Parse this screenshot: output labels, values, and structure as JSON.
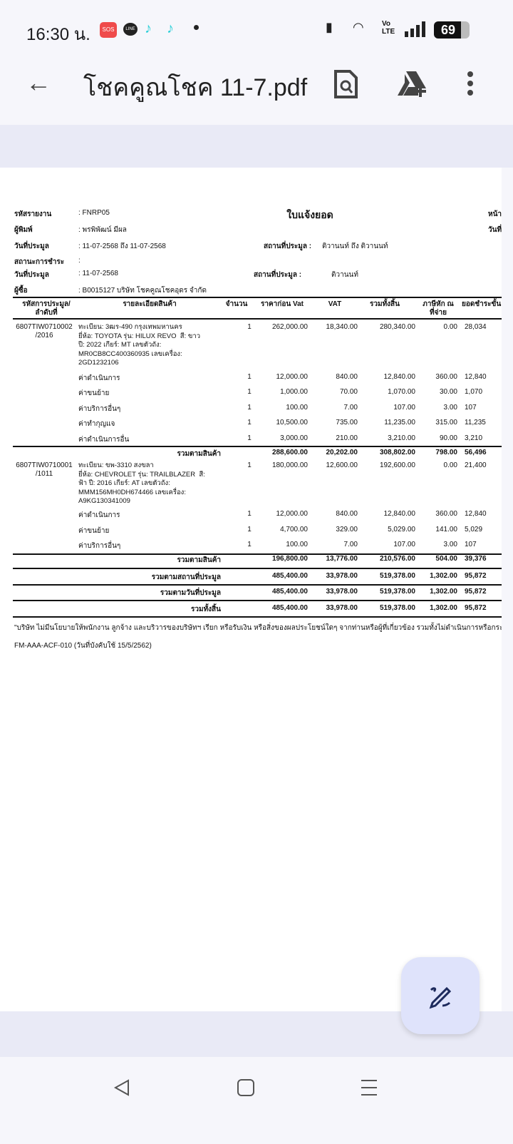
{
  "status_bar": {
    "time": "16:30 น.",
    "sos": "SOS",
    "line": "LINE",
    "battery": "69"
  },
  "toolbar": {
    "back_icon": "arrow-left-icon",
    "title": "โชคคูณโชค 11-7.pdf",
    "search_doc_icon": "document-search-icon",
    "drive_add_icon": "google-drive-add-icon",
    "more_icon": "more-vert-icon"
  },
  "document": {
    "title": "ใบแจ้งยอด",
    "right_labels": [
      "หน้า",
      "วันที่"
    ],
    "meta": [
      {
        "label": "รหัสรายงาน",
        "value": ": FNRP05"
      },
      {
        "label": "ผู้พิมพ์",
        "value": ": พรพิพัฒน์ มีผล"
      },
      {
        "label": "วันที่ประมูล",
        "value": ": 11-07-2568 ถึง 11-07-2568"
      },
      {
        "label": "สถานะการชำระ",
        "value": ":"
      },
      {
        "label": "วันที่ประมูล",
        "value": ": 11-07-2568"
      },
      {
        "label": "ผู้ซื้อ",
        "value": ": B0015127 บริษัท โชคคูณโชคอุดร  จำกัด"
      }
    ],
    "location1": {
      "label": "สถานที่ประมูล :",
      "value": "ติวานนท์ ถึง ติวานนท์"
    },
    "location2": {
      "label": "สถานที่ประมูล :",
      "value": "ติวานนท์"
    },
    "columns": [
      "รหัสการประมูล/\nลำดับที่",
      "รายละเอียดสินค้า",
      "จำนวน",
      "ราคาก่อน Vat",
      "VAT",
      "รวมทั้งสิ้น",
      "ภาษีหัก ณ\nที่จ่าย",
      "ยอดชำระขั้น"
    ],
    "groups": [
      {
        "code": "6807TIW0710002\n/2016",
        "detail": "ทะเบียน: 3ฒร-490 กรุงเทพมหานคร\nยี่ห้อ: TOYOTA รุ่น: HILUX REVO  สี: ขาว\nปี: 2022 เกียร์: MT เลขตัวถัง:\nMR0CB8CC400360935 เลขเครื่อง:\n2GD1232106",
        "main": [
          "1",
          "262,000.00",
          "18,340.00",
          "280,340.00",
          "0.00",
          "28,034"
        ],
        "items": [
          {
            "name": "ค่าดำเนินการ",
            "values": [
              "1",
              "12,000.00",
              "840.00",
              "12,840.00",
              "360.00",
              "12,840"
            ]
          },
          {
            "name": "ค่าขนย้าย",
            "values": [
              "1",
              "1,000.00",
              "70.00",
              "1,070.00",
              "30.00",
              "1,070"
            ]
          },
          {
            "name": "ค่าบริการอื่นๆ",
            "values": [
              "1",
              "100.00",
              "7.00",
              "107.00",
              "3.00",
              "107"
            ]
          },
          {
            "name": "ค่าทำกุญแจ",
            "values": [
              "1",
              "10,500.00",
              "735.00",
              "11,235.00",
              "315.00",
              "11,235"
            ]
          },
          {
            "name": "ค่าดำเนินการอื่น",
            "values": [
              "1",
              "3,000.00",
              "210.00",
              "3,210.00",
              "90.00",
              "3,210"
            ]
          }
        ],
        "subtotal": {
          "label": "รวมตามสินค้า",
          "values": [
            "288,600.00",
            "20,202.00",
            "308,802.00",
            "798.00",
            "56,496"
          ]
        }
      },
      {
        "code": "6807TIW0710001\n/1011",
        "detail": "ทะเบียน: ขพ-3310 สงขลา\nยี่ห้อ: CHEVROLET รุ่น: TRAILBLAZER  สี:\nฟ้า ปี: 2016 เกียร์: AT เลขตัวถัง:\nMMM156MH0DH674466 เลขเครื่อง:\nA9KG130341009",
        "main": [
          "1",
          "180,000.00",
          "12,600.00",
          "192,600.00",
          "0.00",
          "21,400"
        ],
        "items": [
          {
            "name": "ค่าดำเนินการ",
            "values": [
              "1",
              "12,000.00",
              "840.00",
              "12,840.00",
              "360.00",
              "12,840"
            ]
          },
          {
            "name": "ค่าขนย้าย",
            "values": [
              "1",
              "4,700.00",
              "329.00",
              "5,029.00",
              "141.00",
              "5,029"
            ]
          },
          {
            "name": "ค่าบริการอื่นๆ",
            "values": [
              "1",
              "100.00",
              "7.00",
              "107.00",
              "3.00",
              "107"
            ]
          }
        ],
        "subtotal": {
          "label": "รวมตามสินค้า",
          "values": [
            "196,800.00",
            "13,776.00",
            "210,576.00",
            "504.00",
            "39,376"
          ]
        }
      }
    ],
    "totals": [
      {
        "label": "รวมตามสถานที่ประมูล",
        "values": [
          "485,400.00",
          "33,978.00",
          "519,378.00",
          "1,302.00",
          "95,872"
        ]
      },
      {
        "label": "รวมตามวันที่ประมูล",
        "values": [
          "485,400.00",
          "33,978.00",
          "519,378.00",
          "1,302.00",
          "95,872"
        ]
      },
      {
        "label": "รวมทั้งสิ้น",
        "values": [
          "485,400.00",
          "33,978.00",
          "519,378.00",
          "1,302.00",
          "95,872"
        ]
      }
    ],
    "disclaimer": "\"บริษัท ไม่มีนโยบายให้พนักงาน ลูกจ้าง และบริวารของบริษัทฯ เรียก หรือรับเงิน หรือสิ่งของผลประโยชน์ใดๆ จากท่านหรือผู้ที่เกี่ยวข้อง รวมทั้งไม่ดำเนินการหรือกระ",
    "form_code": "FM-AAA-ACF-010 (วันที่บังคับใช้ 15/5/2562)"
  },
  "fab": {
    "icon": "edit-pen-icon"
  },
  "nav": {
    "back_icon": "nav-back-icon",
    "home_icon": "nav-home-icon",
    "recents_icon": "nav-recents-icon"
  }
}
